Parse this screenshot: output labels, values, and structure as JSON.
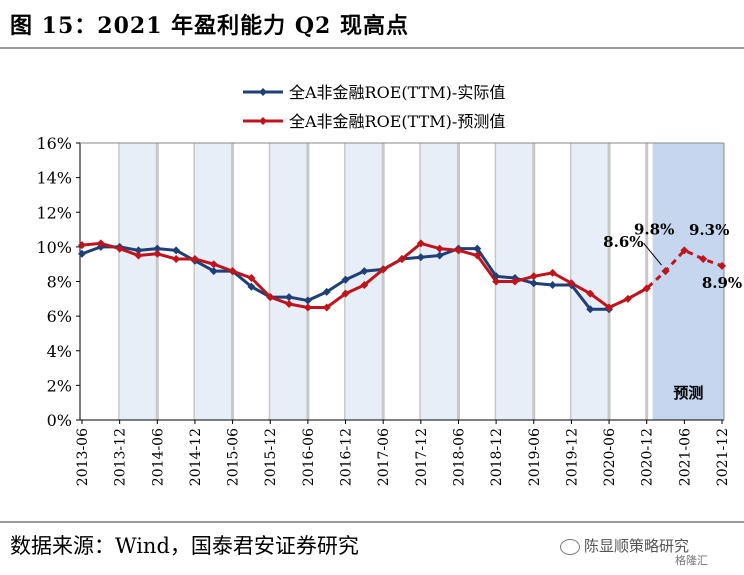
{
  "figure": {
    "title": "图 15：2021 年盈利能力 Q2 现高点",
    "source": "数据来源：Wind，国泰君安证券研究",
    "watermark": "陈显顺策略研究",
    "watermark_sub": "格隆汇"
  },
  "chart_data": {
    "type": "line",
    "title": "",
    "xlabel": "",
    "ylabel": "",
    "ylim": [
      0,
      16
    ],
    "yticks": [
      "0%",
      "2%",
      "4%",
      "6%",
      "8%",
      "10%",
      "12%",
      "14%",
      "16%"
    ],
    "x": [
      "2013-06",
      "2013-09",
      "2013-12",
      "2014-03",
      "2014-06",
      "2014-09",
      "2014-12",
      "2015-03",
      "2015-06",
      "2015-09",
      "2015-12",
      "2016-03",
      "2016-06",
      "2016-09",
      "2016-12",
      "2017-03",
      "2017-06",
      "2017-09",
      "2017-12",
      "2018-03",
      "2018-06",
      "2018-09",
      "2018-12",
      "2019-03",
      "2019-06",
      "2019-09",
      "2019-12",
      "2020-03",
      "2020-06",
      "2020-09",
      "2020-12",
      "2021-03",
      "2021-06",
      "2021-09",
      "2021-12"
    ],
    "xtick_labels": [
      "2013-06",
      "2013-12",
      "2014-06",
      "2014-12",
      "2015-06",
      "2015-12",
      "2016-06",
      "2016-12",
      "2017-06",
      "2017-12",
      "2018-06",
      "2018-12",
      "2019-06",
      "2019-12",
      "2020-06",
      "2020-12",
      "2021-06",
      "2021-12"
    ],
    "legend_position": "top-center",
    "series": [
      {
        "name": "全A非金融ROE(TTM)-实际值",
        "color": "#1f3f77",
        "values": [
          9.6,
          10.0,
          10.0,
          9.8,
          9.9,
          9.8,
          9.2,
          8.6,
          8.6,
          7.7,
          7.1,
          7.1,
          6.9,
          7.4,
          8.1,
          8.6,
          8.7,
          9.3,
          9.4,
          9.5,
          9.9,
          9.9,
          8.3,
          8.2,
          7.9,
          7.8,
          7.8,
          6.4,
          6.4,
          null,
          null,
          8.6,
          null,
          null,
          null
        ]
      },
      {
        "name": "全A非金融ROE(TTM)-预测值",
        "color": "#c0141c",
        "values": [
          10.1,
          10.2,
          9.9,
          9.5,
          9.6,
          9.3,
          9.3,
          9.0,
          8.6,
          8.2,
          7.1,
          6.7,
          6.5,
          6.5,
          7.3,
          7.8,
          8.7,
          9.3,
          10.2,
          9.9,
          9.8,
          9.5,
          8.0,
          8.0,
          8.3,
          8.5,
          7.9,
          7.3,
          6.5,
          7.0,
          7.6,
          8.6,
          9.8,
          9.3,
          8.9
        ]
      }
    ],
    "forecast_start_index": 30,
    "forecast_label": "预测",
    "annotations": [
      {
        "text": "8.6%",
        "x": "2021-03",
        "value": 8.6
      },
      {
        "text": "9.8%",
        "x": "2021-06",
        "value": 9.8
      },
      {
        "text": "9.3%",
        "x": "2021-09",
        "value": 9.3
      },
      {
        "text": "8.9%",
        "x": "2021-12",
        "value": 8.9
      }
    ],
    "grid": false,
    "colors": {
      "band_light": "#e8eef7",
      "forecast_band": "#c5d6ee",
      "divider": "#c8c8c8"
    }
  }
}
